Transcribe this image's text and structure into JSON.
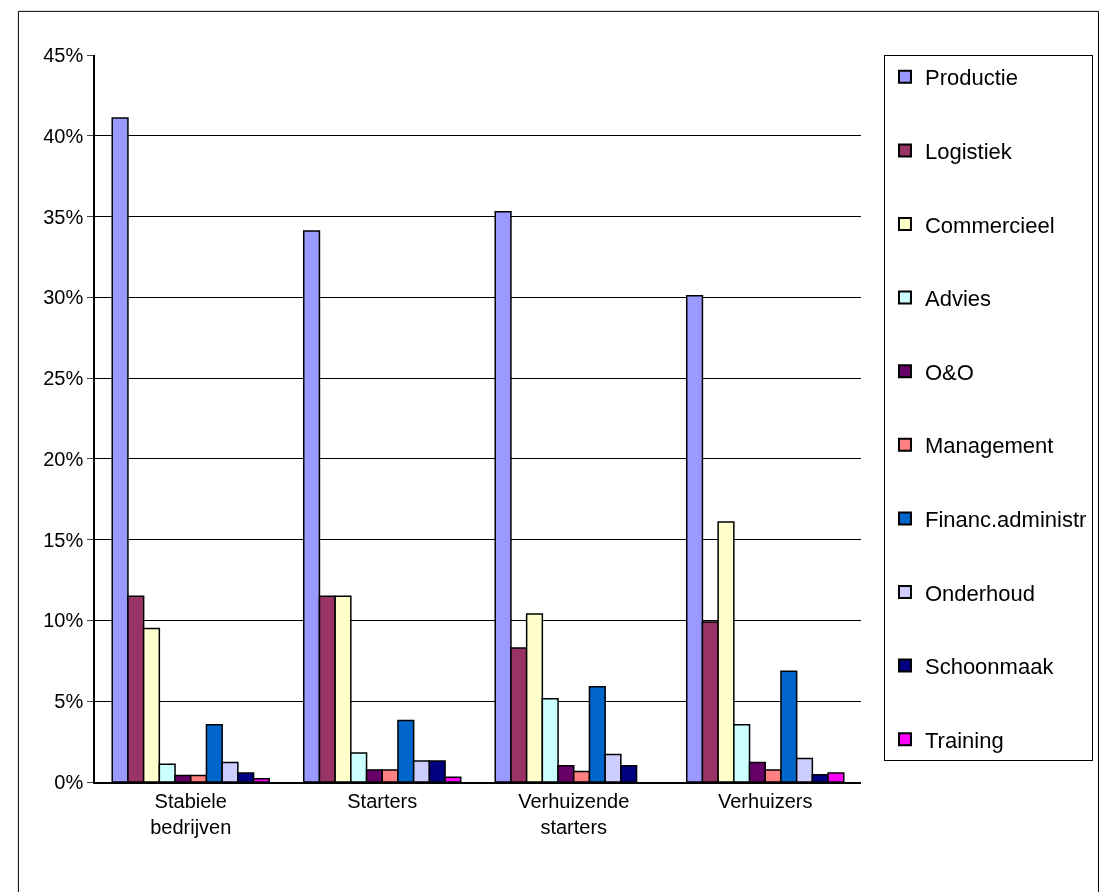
{
  "chart_data": {
    "type": "bar",
    "categories": [
      "Stabiele bedrijven",
      "Starters",
      "Verhuizende starters",
      "Verhuizers"
    ],
    "series": [
      {
        "name": "Productie",
        "color": "#9999ff",
        "values": [
          41.1,
          34.1,
          35.3,
          30.1
        ]
      },
      {
        "name": "Logistiek",
        "color": "#993366",
        "values": [
          11.5,
          11.5,
          8.3,
          9.9
        ]
      },
      {
        "name": "Commercieel",
        "color": "#ffffcc",
        "values": [
          9.5,
          11.5,
          10.4,
          16.1
        ]
      },
      {
        "name": "Advies",
        "color": "#ccffff",
        "values": [
          1.1,
          1.8,
          5.15,
          3.55
        ]
      },
      {
        "name": "O&O",
        "color": "#660066",
        "values": [
          0.4,
          0.75,
          1.0,
          1.2
        ]
      },
      {
        "name": "Management",
        "color": "#ff8080",
        "values": [
          0.4,
          0.75,
          0.65,
          0.75
        ]
      },
      {
        "name": "Financ.administr",
        "color": "#0066cc",
        "values": [
          3.55,
          3.8,
          5.9,
          6.85
        ]
      },
      {
        "name": "Onderhoud",
        "color": "#ccccff",
        "values": [
          1.2,
          1.3,
          1.7,
          1.45
        ]
      },
      {
        "name": "Schoonmaak",
        "color": "#000080",
        "values": [
          0.55,
          1.3,
          1.0,
          0.45
        ]
      },
      {
        "name": "Training",
        "color": "#ff00ff",
        "values": [
          0.2,
          0.3,
          null,
          0.55
        ]
      }
    ],
    "ylim": [
      0,
      45
    ],
    "yticks": [
      {
        "value": 0,
        "label": "0%"
      },
      {
        "value": 5,
        "label": "5%"
      },
      {
        "value": 10,
        "label": "10%"
      },
      {
        "value": 15,
        "label": "15%"
      },
      {
        "value": 20,
        "label": "20%"
      },
      {
        "value": 25,
        "label": "25%"
      },
      {
        "value": 30,
        "label": "30%"
      },
      {
        "value": 35,
        "label": "35%"
      },
      {
        "value": 40,
        "label": "40%"
      },
      {
        "value": 45,
        "label": "45%"
      }
    ],
    "grid": "y",
    "legend": "right"
  }
}
